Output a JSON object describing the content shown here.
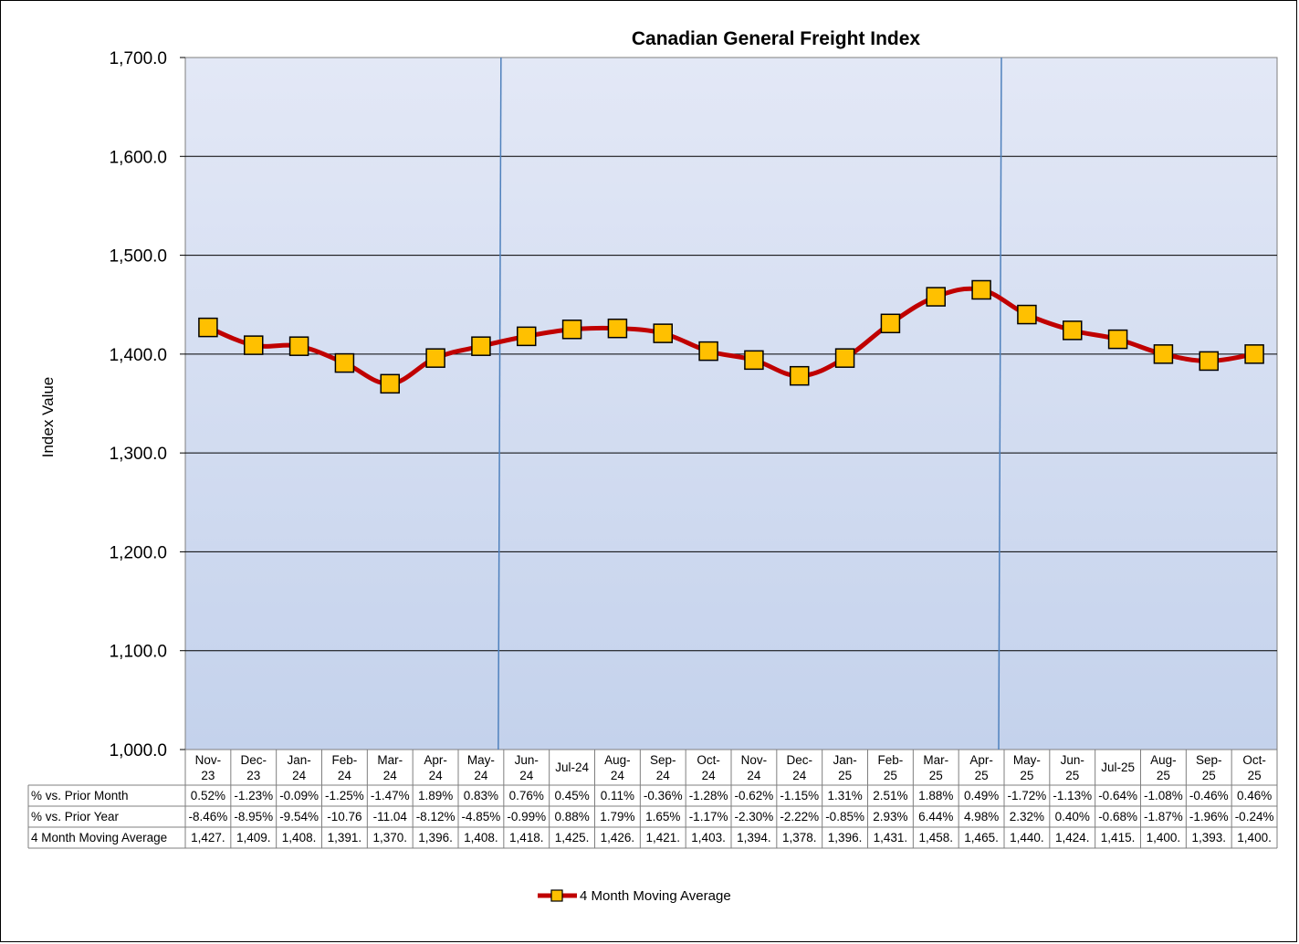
{
  "chart_data": {
    "type": "line",
    "title": "Canadian General Freight Index",
    "ylabel": "Index Value",
    "xlabel": "",
    "ylim": [
      1000,
      1700
    ],
    "yticks": [
      "1,000.0",
      "1,100.0",
      "1,200.0",
      "1,300.0",
      "1,400.0",
      "1,500.0",
      "1,600.0",
      "1,700.0"
    ],
    "grid": true,
    "legend_placement": "bottom-center",
    "categories": [
      [
        "Nov-",
        "23"
      ],
      [
        "Dec-",
        "23"
      ],
      [
        "Jan-",
        "24"
      ],
      [
        "Feb-",
        "24"
      ],
      [
        "Mar-",
        "24"
      ],
      [
        "Apr-",
        "24"
      ],
      [
        "May-",
        "24"
      ],
      [
        "Jun-",
        "24"
      ],
      [
        "Jul-24"
      ],
      [
        "Aug-",
        "24"
      ],
      [
        "Sep-",
        "24"
      ],
      [
        "Oct-",
        "24"
      ],
      [
        "Nov-",
        "24"
      ],
      [
        "Dec-",
        "24"
      ],
      [
        "Jan-",
        "25"
      ],
      [
        "Feb-",
        "25"
      ],
      [
        "Mar-",
        "25"
      ],
      [
        "Apr-",
        "25"
      ],
      [
        "May-",
        "25"
      ],
      [
        "Jun-",
        "25"
      ],
      [
        "Jul-25"
      ],
      [
        "Aug-",
        "25"
      ],
      [
        "Sep-",
        "25"
      ],
      [
        "Oct-",
        "25"
      ]
    ],
    "series": [
      {
        "name": "4 Month Moving Average",
        "values": [
          1427,
          1409,
          1408,
          1391,
          1370,
          1396,
          1408,
          1418,
          1425,
          1426,
          1421,
          1403,
          1394,
          1378,
          1396,
          1431,
          1458,
          1465,
          1440,
          1424,
          1415,
          1400,
          1393,
          1400
        ],
        "line_color": "#C00000",
        "marker_color": "#FFC000"
      }
    ],
    "reference_lines_after_category": [
      "May-24",
      "Apr-25"
    ],
    "table": {
      "rows": [
        {
          "label": "% vs. Prior Month",
          "cells": [
            "0.52%",
            "-1.23%",
            "-0.09%",
            "-1.25%",
            "-1.47%",
            "1.89%",
            "0.83%",
            "0.76%",
            "0.45%",
            "0.11%",
            "-0.36%",
            "-1.28%",
            "-0.62%",
            "-1.15%",
            "1.31%",
            "2.51%",
            "1.88%",
            "0.49%",
            "-1.72%",
            "-1.13%",
            "-0.64%",
            "-1.08%",
            "-0.46%",
            "0.46%"
          ]
        },
        {
          "label": "% vs. Prior Year",
          "cells": [
            "-8.46%",
            "-8.95%",
            "-9.54%",
            "-10.76",
            "-11.04",
            "-8.12%",
            "-4.85%",
            "-0.99%",
            "0.88%",
            "1.79%",
            "1.65%",
            "-1.17%",
            "-2.30%",
            "-2.22%",
            "-0.85%",
            "2.93%",
            "6.44%",
            "4.98%",
            "2.32%",
            "0.40%",
            "-0.68%",
            "-1.87%",
            "-1.96%",
            "-0.24%"
          ]
        },
        {
          "label": "4 Month Moving Average",
          "cells": [
            "1,427.",
            "1,409.",
            "1,408.",
            "1,391.",
            "1,370.",
            "1,396.",
            "1,408.",
            "1,418.",
            "1,425.",
            "1,426.",
            "1,421.",
            "1,403.",
            "1,394.",
            "1,378.",
            "1,396.",
            "1,431.",
            "1,458.",
            "1,465.",
            "1,440.",
            "1,424.",
            "1,415.",
            "1,400.",
            "1,393.",
            "1,400."
          ]
        }
      ]
    },
    "colors": {
      "plot_top": "#E3E8F6",
      "plot_bottom": "#C4D2EC",
      "reference_line": "#4F81BD"
    }
  }
}
